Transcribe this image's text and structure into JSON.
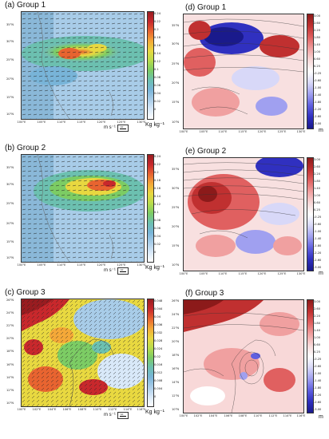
{
  "colors": {
    "left_scale": [
      "#ffffff",
      "#d8e8f8",
      "#a8cce8",
      "#78b4d8",
      "#6cc0b0",
      "#7ccc64",
      "#b8dc4c",
      "#e8d840",
      "#f4a838",
      "#e86430",
      "#c8282c",
      "#981c20"
    ],
    "right_scale": [
      "#1a1a8c",
      "#3030c0",
      "#6060e0",
      "#a0a0f0",
      "#d8d8f8",
      "#ffffff",
      "#f8d8d8",
      "#f0a0a0",
      "#e06060",
      "#c03030",
      "#8c1a1a"
    ]
  },
  "panels": [
    {
      "id": "a",
      "title": "(a) Group 1",
      "y_ticks": [
        "35°N",
        "30°N",
        "25°N",
        "20°N",
        "15°N",
        "10°N"
      ],
      "x_ticks": [
        "100°E",
        "105°E",
        "110°E",
        "115°E",
        "120°E",
        "125°E",
        "130°E"
      ],
      "cbar_ticks": [
        "0.24",
        "0.22",
        "0.2",
        "0.18",
        "0.16",
        "0.14",
        "0.12",
        "0.1",
        "0.08",
        "0.06",
        "0.04",
        "0.02",
        "0"
      ],
      "unit": "Kg kg⁻¹",
      "wind_unit": "m s⁻¹",
      "wind_ref": "10"
    },
    {
      "id": "b",
      "title": "(b) Group 2",
      "y_ticks": [
        "35°N",
        "30°N",
        "25°N",
        "20°N",
        "15°N",
        "10°N"
      ],
      "x_ticks": [
        "100°E",
        "105°E",
        "110°E",
        "115°E",
        "120°E",
        "125°E",
        "130°E"
      ],
      "cbar_ticks": [
        "0.24",
        "0.22",
        "0.2",
        "0.18",
        "0.16",
        "0.14",
        "0.12",
        "0.1",
        "0.08",
        "0.06",
        "0.04",
        "0.02",
        "0"
      ],
      "unit": "Kg kg⁻¹",
      "wind_unit": "m s⁻¹",
      "wind_ref": "10"
    },
    {
      "id": "c",
      "title": "(c) Group 3",
      "y_ticks": [
        "26°N",
        "24°N",
        "22°N",
        "20°N",
        "18°N",
        "16°N",
        "14°N",
        "12°N",
        "10°N"
      ],
      "x_ticks": [
        "100°E",
        "102°E",
        "104°E",
        "106°E",
        "108°E",
        "110°E",
        "112°E",
        "114°E",
        "116°E"
      ],
      "cbar_ticks": [
        "0.048",
        "0.044",
        "0.04",
        "0.036",
        "0.032",
        "0.028",
        "0.024",
        "0.02",
        "0.016",
        "0.012",
        "0.008",
        "0.004",
        "0"
      ],
      "unit": "Kg kg⁻¹",
      "wind_unit": "m s⁻¹",
      "wind_ref": "10"
    },
    {
      "id": "d",
      "title": "(d) Group 1",
      "y_ticks": [
        "35°N",
        "30°N",
        "25°N",
        "20°N",
        "15°N",
        "10°N"
      ],
      "x_ticks": [
        "100°E",
        "105°E",
        "110°E",
        "115°E",
        "120°E",
        "125°E",
        "130°E"
      ],
      "cbar_ticks": [
        "3.00",
        "2.60",
        "2.20",
        "1.80",
        "1.40",
        "1.00",
        "0.60",
        "0.25",
        "-0.25",
        "-0.60",
        "-1.00",
        "-1.40",
        "-1.80",
        "-2.20",
        "-2.60",
        "-3.00"
      ],
      "unit": "m"
    },
    {
      "id": "e",
      "title": "(e) Group 2",
      "y_ticks": [
        "35°N",
        "30°N",
        "25°N",
        "20°N",
        "15°N",
        "10°N"
      ],
      "x_ticks": [
        "100°E",
        "105°E",
        "110°E",
        "115°E",
        "120°E",
        "125°E",
        "130°E"
      ],
      "cbar_ticks": [
        "3.00",
        "2.60",
        "2.20",
        "1.80",
        "1.40",
        "1.00",
        "0.60",
        "0.25",
        "-0.25",
        "-0.60",
        "-1.00",
        "-1.40",
        "-1.80",
        "-2.20",
        "-2.60",
        "-3.00"
      ],
      "unit": "m"
    },
    {
      "id": "f",
      "title": "(f) Group 3",
      "y_ticks": [
        "26°N",
        "24°N",
        "22°N",
        "20°N",
        "18°N",
        "16°N",
        "14°N",
        "12°N",
        "10°N"
      ],
      "x_ticks": [
        "100°E",
        "102°E",
        "104°E",
        "106°E",
        "108°E",
        "110°E",
        "112°E",
        "114°E",
        "116°E"
      ],
      "cbar_ticks": [
        "3.00",
        "2.60",
        "2.20",
        "1.80",
        "1.40",
        "1.00",
        "0.60",
        "0.25",
        "-0.25",
        "-0.60",
        "-1.00",
        "-1.40",
        "-1.80",
        "-2.20",
        "-2.60",
        "-3.00"
      ],
      "unit": "m"
    }
  ]
}
